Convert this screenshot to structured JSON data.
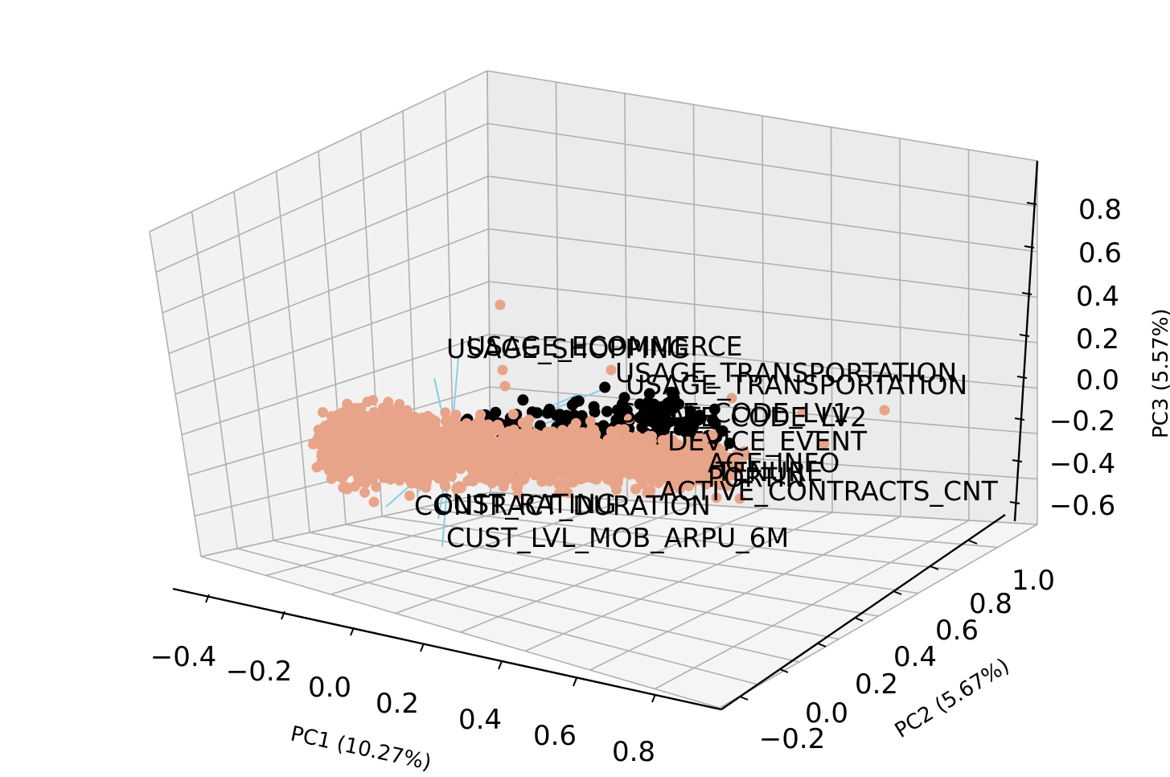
{
  "chart_data": {
    "type": "scatter",
    "projection": "3d",
    "title": "",
    "xlabel": "PC1 (10.27%)",
    "ylabel": "PC2 (5.67%)",
    "zlabel": "PC3 (5.57%)",
    "xlim": [
      -0.45,
      0.9
    ],
    "ylim": [
      -0.3,
      1.05
    ],
    "zlim": [
      -0.65,
      0.95
    ],
    "x_ticks": [
      "−0.4",
      "−0.2",
      "0.0",
      "0.2",
      "0.4",
      "0.6",
      "0.8"
    ],
    "y_ticks": [
      "−0.2",
      "0.0",
      "0.2",
      "0.4",
      "0.6",
      "0.8",
      "1.0"
    ],
    "z_ticks": [
      "−0.6",
      "−0.4",
      "−0.2",
      "0.0",
      "0.2",
      "0.4",
      "0.6",
      "0.8"
    ],
    "grid": true,
    "legend": "none",
    "colors": {
      "points": "#e8a489",
      "loading_arrows": "#87ceeb",
      "pane": "#f2f2f2",
      "grid": "#b0b0b0"
    },
    "series": [
      {
        "kind": "scores",
        "note_points": [
          [
            -0.18,
            -0.05,
            -0.28
          ],
          [
            -0.12,
            0.02,
            -0.3
          ],
          [
            -0.05,
            -0.02,
            -0.27
          ],
          [
            0.02,
            0.05,
            -0.29
          ],
          [
            0.1,
            0.0,
            -0.3
          ],
          [
            0.18,
            -0.05,
            -0.26
          ],
          [
            0.26,
            0.03,
            -0.28
          ],
          [
            0.34,
            0.1,
            -0.27
          ],
          [
            0.42,
            0.15,
            -0.25
          ],
          [
            0.5,
            0.2,
            -0.24
          ],
          [
            0.58,
            0.25,
            -0.22
          ],
          [
            0.66,
            0.3,
            -0.2
          ]
        ]
      },
      {
        "kind": "loadings",
        "labels": [
          "USAGE_SHOPPING",
          "USAGE_ECOMMERCE",
          "USAGE_TRANSPORTATION",
          "USAGE_TRANSPORTATION",
          "STATE_CODE_LV1",
          "STATE_CODE_LV2",
          "DEVICE_EVENT",
          "AGE_INFO",
          "TENURE",
          "PORTIN",
          "ACTIVE_CONTRACTS_CNT",
          "CONTRACT_DURATION",
          "CUST_RATING",
          "CUST_LVL_MOB_ARPU_6M"
        ]
      }
    ]
  }
}
